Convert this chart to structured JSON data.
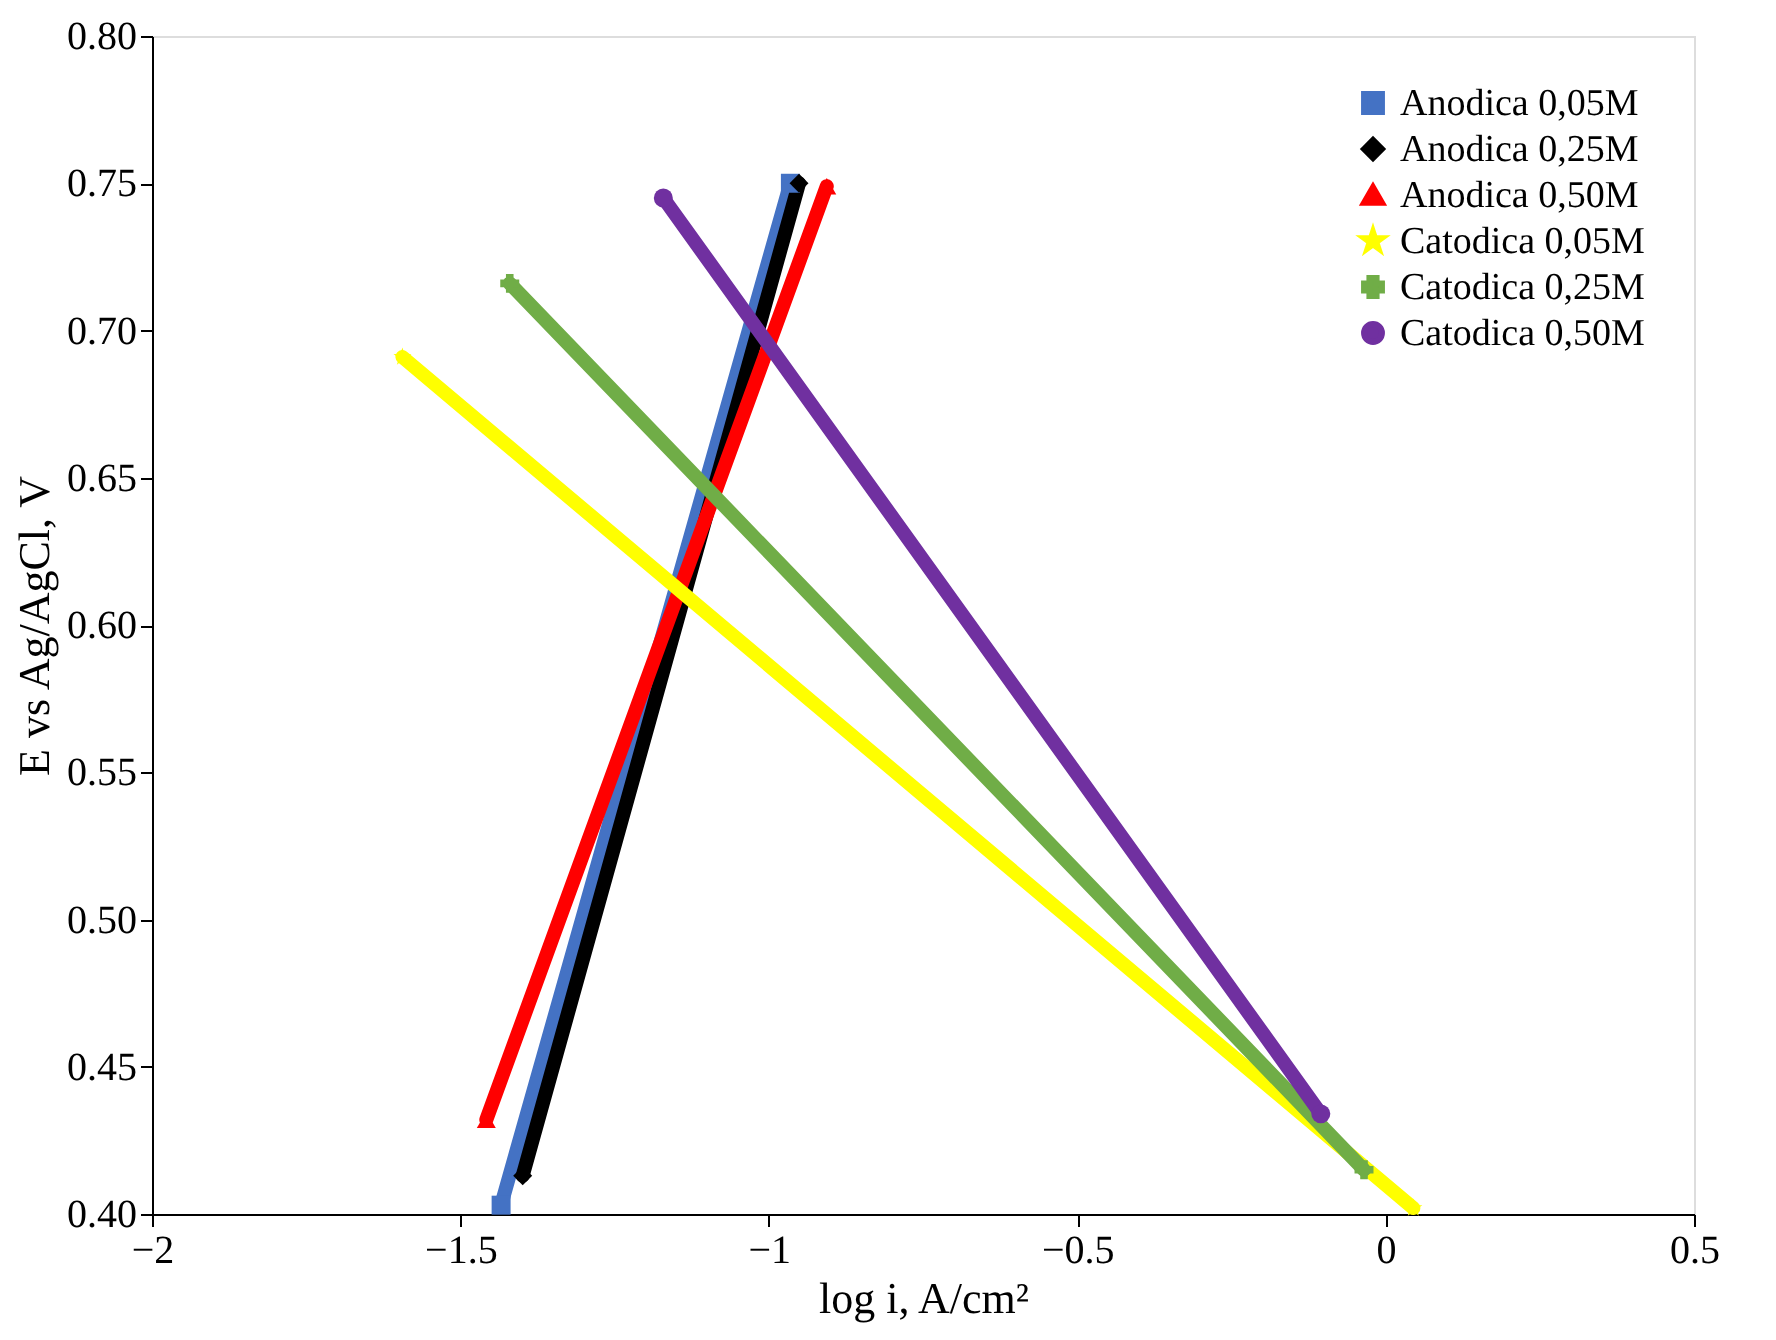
{
  "chart_data": {
    "type": "line",
    "xlabel": "log i, A/cm²",
    "ylabel": "E vs Ag/AgCl, V",
    "xlim": [
      -2,
      0.5
    ],
    "xticks": [
      -2,
      -1.5,
      -1,
      -0.5,
      0,
      0.5
    ],
    "ylim": [
      0.4,
      0.8
    ],
    "yticks": [
      {
        "value": 0.4,
        "label": "0.40"
      },
      {
        "value": 0.45,
        "label": "0.45"
      },
      {
        "value": 0.5,
        "label": "0.50"
      },
      {
        "value": 0.55,
        "label": "0.55"
      },
      {
        "value": 0.6,
        "label": "0.60"
      },
      {
        "value": 0.65,
        "label": "0.65"
      },
      {
        "value": 0.7,
        "label": "0.70"
      },
      {
        "value": 0.75,
        "label": "0.75"
      },
      {
        "value": 0.8,
        "label": "0.80"
      }
    ],
    "grid": false,
    "legend": "top right",
    "line_style": "solid",
    "series": [
      {
        "name": "Anodica 0,05M",
        "color": "#4472c4",
        "marker": "square",
        "x": [
          -1.434,
          -0.965
        ],
        "values": [
          0.403,
          0.75
        ]
      },
      {
        "name": "Anodica 0,25M",
        "color": "#000000",
        "marker": "diamond",
        "x": [
          -1.399,
          -0.951
        ],
        "values": [
          0.413,
          0.75
        ]
      },
      {
        "name": "Anodica 0,50M",
        "color": "#ff0000",
        "marker": "triangle",
        "x": [
          -1.458,
          -0.906
        ],
        "values": [
          0.432,
          0.749
        ]
      },
      {
        "name": "Catodica 0,05M",
        "color": "#ffff00",
        "marker": "star",
        "x": [
          -1.594,
          0.045
        ],
        "values": [
          0.691,
          0.402
        ]
      },
      {
        "name": "Catodica 0,25M",
        "color": "#70ad47",
        "marker": "cross",
        "x": [
          -1.42,
          -0.035
        ],
        "values": [
          0.716,
          0.415
        ]
      },
      {
        "name": "Catodica 0,50M",
        "color": "#7030a0",
        "marker": "circle",
        "x": [
          -1.171,
          -0.105
        ],
        "values": [
          0.745,
          0.434
        ]
      }
    ]
  }
}
